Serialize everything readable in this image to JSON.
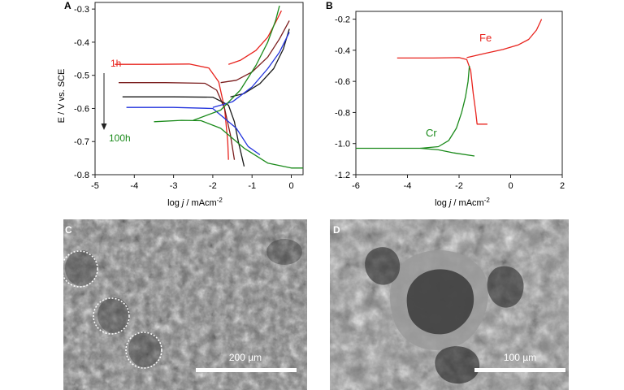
{
  "chart_data": [
    {
      "panel": "A",
      "type": "line",
      "xlabel": "log j / mAcm-2",
      "ylabel": "E / V vs. SCE",
      "xlim": [
        -5,
        0.3
      ],
      "ylim": [
        -0.8,
        -0.28
      ],
      "xticks": [
        "-5",
        "-4",
        "-3",
        "-2",
        "-1",
        "0"
      ],
      "yticks": [
        "-0.3",
        "-0.4",
        "-0.5",
        "-0.6",
        "-0.7",
        "-0.8"
      ],
      "annotations": [
        "1h",
        "100h"
      ],
      "series": [
        {
          "color": "#e8231d",
          "branches": [
            {
              "x": [
                -4.5,
                -3.5,
                -2.6,
                -2.1,
                -1.85,
                -1.7,
                -1.62,
                -1.6
              ],
              "y": [
                -0.467,
                -0.467,
                -0.466,
                -0.478,
                -0.52,
                -0.6,
                -0.7,
                -0.755
              ]
            },
            {
              "x": [
                -1.6,
                -1.3,
                -0.9,
                -0.6,
                -0.4,
                -0.25
              ],
              "y": [
                -0.467,
                -0.455,
                -0.425,
                -0.385,
                -0.34,
                -0.305
              ]
            }
          ]
        },
        {
          "color": "#7a1c1c",
          "branches": [
            {
              "x": [
                -4.4,
                -3.2,
                -2.2,
                -1.9,
                -1.7,
                -1.55,
                -1.45
              ],
              "y": [
                -0.522,
                -0.522,
                -0.524,
                -0.545,
                -0.6,
                -0.68,
                -0.755
              ]
            },
            {
              "x": [
                -1.8,
                -1.4,
                -1.0,
                -0.6,
                -0.3,
                -0.05
              ],
              "y": [
                -0.522,
                -0.515,
                -0.49,
                -0.445,
                -0.39,
                -0.335
              ]
            }
          ]
        },
        {
          "color": "#1a1a1a",
          "branches": [
            {
              "x": [
                -4.3,
                -3.0,
                -2.0,
                -1.6,
                -1.45,
                -1.35,
                -1.2
              ],
              "y": [
                -0.565,
                -0.565,
                -0.566,
                -0.59,
                -0.64,
                -0.7,
                -0.775
              ]
            },
            {
              "x": [
                -1.55,
                -1.2,
                -0.8,
                -0.45,
                -0.2,
                -0.05
              ],
              "y": [
                -0.565,
                -0.555,
                -0.525,
                -0.48,
                -0.42,
                -0.36
              ]
            }
          ]
        },
        {
          "color": "#2233dd",
          "branches": [
            {
              "x": [
                -4.2,
                -3.0,
                -2.0,
                -1.4,
                -1.1,
                -0.8
              ],
              "y": [
                -0.597,
                -0.597,
                -0.6,
                -0.66,
                -0.715,
                -0.74
              ]
            },
            {
              "x": [
                -2.0,
                -1.5,
                -1.0,
                -0.6,
                -0.3,
                -0.05
              ],
              "y": [
                -0.597,
                -0.58,
                -0.535,
                -0.48,
                -0.43,
                -0.37
              ]
            }
          ]
        },
        {
          "color": "#1a8a1a",
          "branches": [
            {
              "x": [
                -3.5,
                -2.8,
                -2.3,
                -1.8,
                -1.2,
                -0.6,
                0.0,
                0.3
              ],
              "y": [
                -0.64,
                -0.636,
                -0.637,
                -0.66,
                -0.72,
                -0.765,
                -0.78,
                -0.78
              ]
            },
            {
              "x": [
                -2.5,
                -1.8,
                -1.3,
                -0.9,
                -0.6,
                -0.4,
                -0.3
              ],
              "y": [
                -0.636,
                -0.605,
                -0.545,
                -0.47,
                -0.4,
                -0.335,
                -0.29
              ]
            }
          ]
        }
      ]
    },
    {
      "panel": "B",
      "type": "line",
      "xlabel": "log j / mAcm-2",
      "ylabel": "",
      "xlim": [
        -6,
        2
      ],
      "ylim": [
        -1.2,
        -0.15
      ],
      "xticks": [
        "-6",
        "-4",
        "-2",
        "0",
        "2"
      ],
      "yticks": [
        "-0.2",
        "-0.4",
        "-0.6",
        "-0.8",
        "-1.0",
        "-1.2"
      ],
      "series": [
        {
          "name": "Fe",
          "color": "#e8231d",
          "branches": [
            {
              "x": [
                -4.4,
                -3.0,
                -2.0,
                -1.7,
                -1.55,
                -1.45,
                -1.35,
                -1.3,
                -0.9
              ],
              "y": [
                -0.45,
                -0.45,
                -0.447,
                -0.46,
                -0.53,
                -0.68,
                -0.8,
                -0.875,
                -0.875
              ]
            },
            {
              "x": [
                -1.7,
                -1.0,
                -0.3,
                0.3,
                0.7,
                1.0,
                1.2
              ],
              "y": [
                -0.447,
                -0.42,
                -0.395,
                -0.365,
                -0.33,
                -0.27,
                -0.2
              ]
            }
          ]
        },
        {
          "name": "Cr",
          "color": "#1a8a1a",
          "branches": [
            {
              "x": [
                -6.0,
                -4.5,
                -3.5,
                -2.8,
                -2.2,
                -1.4
              ],
              "y": [
                -1.03,
                -1.03,
                -1.03,
                -1.04,
                -1.06,
                -1.08
              ]
            },
            {
              "x": [
                -3.5,
                -2.8,
                -2.4,
                -2.1,
                -1.9,
                -1.75,
                -1.65,
                -1.6
              ],
              "y": [
                -1.03,
                -1.02,
                -0.98,
                -0.9,
                -0.8,
                -0.7,
                -0.6,
                -0.5
              ]
            }
          ]
        }
      ]
    }
  ],
  "micrographs": [
    {
      "panel": "C",
      "scale_label": "200 µm",
      "circles": 3
    },
    {
      "panel": "D",
      "scale_label": "100 µm"
    }
  ]
}
